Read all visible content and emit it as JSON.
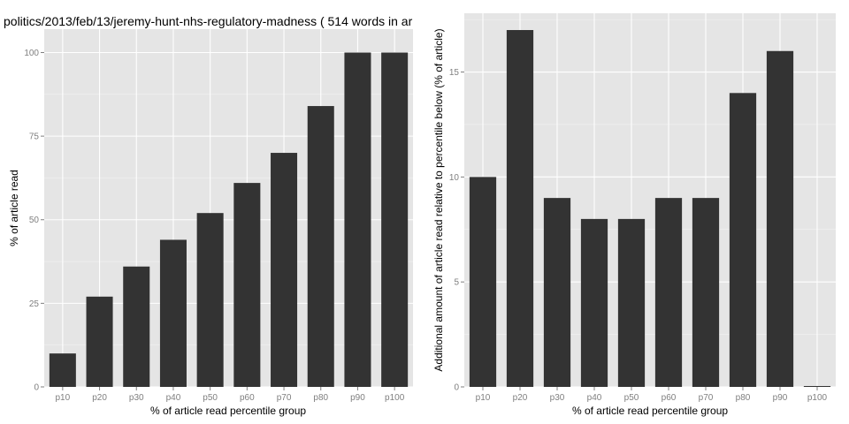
{
  "chart_data": [
    {
      "type": "bar",
      "title": "politics/2013/feb/13/jeremy-hunt-nhs-regulatory-madness ( 514 words in ar",
      "xlabel": "% of article read percentile group",
      "ylabel": "% of article read",
      "categories": [
        "p10",
        "p20",
        "p30",
        "p40",
        "p50",
        "p60",
        "p70",
        "p80",
        "p90",
        "p100"
      ],
      "values": [
        10,
        27,
        36,
        44,
        52,
        61,
        70,
        84,
        100,
        100
      ],
      "ylim": [
        0,
        107
      ],
      "yticks": [
        0,
        25,
        50,
        75,
        100
      ],
      "grid": true,
      "bar_color": "#333333",
      "panel_color": "#e5e5e5"
    },
    {
      "type": "bar",
      "title": "",
      "xlabel": "% of article read percentile group",
      "ylabel": "Additional amount of article read relative to percentile below (% of article)",
      "categories": [
        "p10",
        "p20",
        "p30",
        "p40",
        "p50",
        "p60",
        "p70",
        "p80",
        "p90",
        "p100"
      ],
      "values": [
        10,
        17,
        9,
        8,
        8,
        9,
        9,
        14,
        16,
        0
      ],
      "ylim": [
        0,
        17.8
      ],
      "yticks": [
        0,
        5,
        10,
        15
      ],
      "grid": true,
      "bar_color": "#333333",
      "panel_color": "#e5e5e5"
    }
  ]
}
